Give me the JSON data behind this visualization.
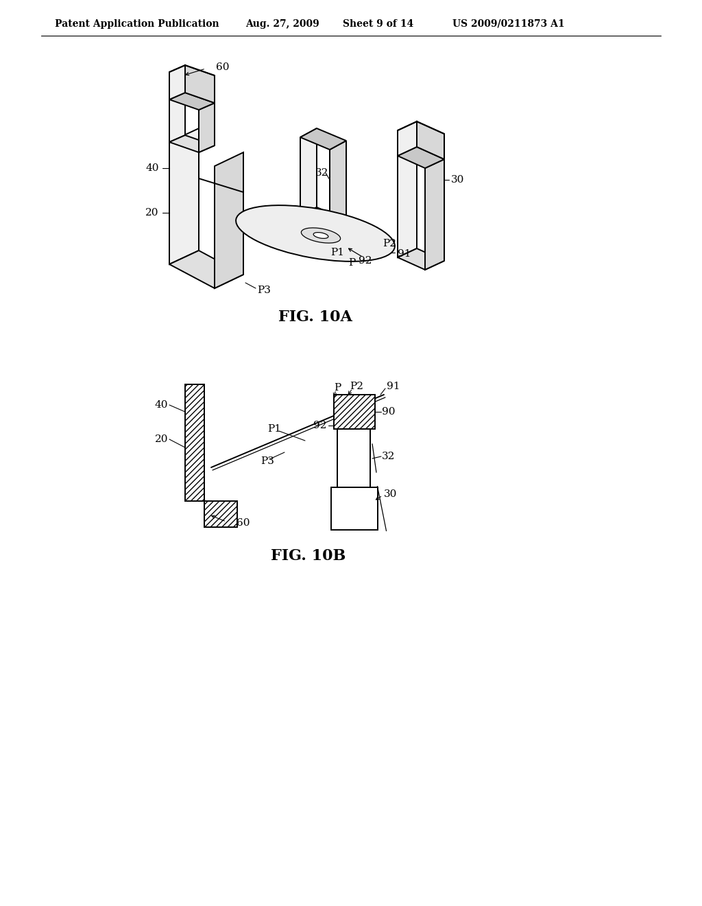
{
  "background_color": "#ffffff",
  "header_text": "Patent Application Publication",
  "header_date": "Aug. 27, 2009",
  "header_sheet": "Sheet 9 of 14",
  "header_patent": "US 2009/0211873 A1",
  "fig10a_label": "FIG. 10A",
  "fig10b_label": "FIG. 10B",
  "line_color": "#000000",
  "label_fontsize": 11,
  "header_fontsize": 10,
  "fig_label_fontsize": 16
}
